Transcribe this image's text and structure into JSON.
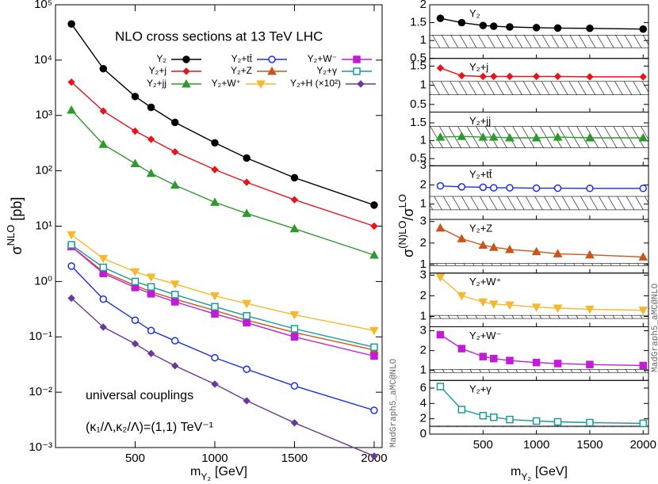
{
  "chart_data": [
    {
      "type": "line",
      "log_y": true,
      "grid": false,
      "title": "NLO cross sections at 13 TeV LHC",
      "annotations": [
        "universal couplings",
        "(κ₁/Λ,κ₂/Λ)=(1,1) TeV⁻¹"
      ],
      "watermark": "MadGraph5_aMC@NLO",
      "xlabel": {
        "main": "m",
        "sub": "Y₂",
        "unit": "[GeV]"
      },
      "ylabel": {
        "main": "σ",
        "sup": "NLO",
        "unit": "[pb]"
      },
      "x": [
        100,
        300,
        500,
        600,
        750,
        1000,
        1200,
        1500,
        2000
      ],
      "xlim": [
        0,
        2050
      ],
      "xticks": [
        500,
        1000,
        1500,
        2000
      ],
      "ylim": [
        0.001,
        100000
      ],
      "yticks": [
        {
          "value": 0.001,
          "label": "10⁻³"
        },
        {
          "value": 0.01,
          "label": "10⁻²"
        },
        {
          "value": 0.1,
          "label": "10⁻¹"
        },
        {
          "value": 1,
          "label": "10⁰"
        },
        {
          "value": 10,
          "label": "10¹"
        },
        {
          "value": 100,
          "label": "10²"
        },
        {
          "value": 1000,
          "label": "10³"
        },
        {
          "value": 10000,
          "label": "10⁴"
        },
        {
          "value": 100000,
          "label": "10⁵"
        }
      ],
      "series": [
        {
          "name": "Y₂",
          "color": "#000000",
          "marker": "circle",
          "values": [
            45000,
            7000,
            2200,
            1400,
            750,
            320,
            170,
            75,
            24
          ]
        },
        {
          "name": "Y₂+j",
          "color": "#e8141a",
          "marker": "diamond",
          "values": [
            4000,
            1200,
            520,
            370,
            220,
            105,
            62,
            30,
            10
          ]
        },
        {
          "name": "Y₂+jj",
          "color": "#2e9a2e",
          "marker": "triangle",
          "values": [
            1250,
            300,
            135,
            90,
            55,
            27,
            17,
            9,
            3
          ]
        },
        {
          "name": "Y₂+tt̄",
          "color": "#1a2fe0",
          "marker": "circle-open",
          "values": [
            1.9,
            0.48,
            0.2,
            0.13,
            0.085,
            0.042,
            0.026,
            0.013,
            0.0047
          ]
        },
        {
          "name": "Y₂+Z",
          "color": "#c8561c",
          "marker": "triangle",
          "values": [
            4.3,
            1.5,
            0.85,
            0.65,
            0.48,
            0.3,
            0.2,
            0.12,
            0.058
          ]
        },
        {
          "name": "Y₂+W⁺",
          "color": "#f5b82e",
          "marker": "triangle-down",
          "values": [
            7,
            2.6,
            1.5,
            1.2,
            0.9,
            0.55,
            0.4,
            0.25,
            0.13
          ]
        },
        {
          "name": "Y₂+W⁻",
          "color": "#c21bd6",
          "marker": "square",
          "values": [
            4.3,
            1.4,
            0.78,
            0.6,
            0.43,
            0.26,
            0.18,
            0.1,
            0.045
          ]
        },
        {
          "name": "Y₂+γ",
          "color": "#1a9a9a",
          "marker": "square-open",
          "values": [
            4.6,
            1.8,
            1.0,
            0.8,
            0.58,
            0.35,
            0.24,
            0.14,
            0.065
          ]
        },
        {
          "name": "Y₂+H (×10²)",
          "color": "#6a3a9a",
          "marker": "diamond",
          "values": [
            0.5,
            0.15,
            0.075,
            0.05,
            0.03,
            0.014,
            0.007,
            0.0028,
            0.0007
          ]
        }
      ]
    },
    {
      "type": "ratio-panels",
      "watermark": "MadGraph5_aMC@NLO",
      "xlabel": {
        "main": "m",
        "sub": "Y₂",
        "unit": "[GeV]"
      },
      "ylabel": {
        "a": "σ",
        "b": "(N)LO",
        "c": "/σ",
        "d": "LO"
      },
      "x": [
        100,
        300,
        500,
        600,
        750,
        1000,
        1200,
        1500,
        2000
      ],
      "xlim": [
        0,
        2050
      ],
      "xticks": [
        500,
        1000,
        1500,
        2000
      ],
      "panels": [
        {
          "name": "Y₂",
          "color": "#000000",
          "marker": "circle",
          "ylim": [
            0.5,
            2
          ],
          "yticks": [
            0.5,
            1,
            1.5,
            2
          ],
          "band": [
            0.8,
            1.15
          ],
          "values": [
            1.62,
            1.5,
            1.42,
            1.4,
            1.38,
            1.36,
            1.35,
            1.34,
            1.32
          ]
        },
        {
          "name": "Y₂+j",
          "color": "#e8141a",
          "marker": "diamond",
          "ylim": [
            0.3,
            1.7
          ],
          "yticks": [
            0.5,
            1,
            1.5
          ],
          "band": [
            0.75,
            1.1
          ],
          "values": [
            1.45,
            1.25,
            1.23,
            1.23,
            1.23,
            1.23,
            1.23,
            1.22,
            1.22
          ]
        },
        {
          "name": "Y₂+jj",
          "color": "#2e9a2e",
          "marker": "triangle",
          "ylim": [
            0.3,
            1.8
          ],
          "yticks": [
            0.5,
            1,
            1.5
          ],
          "band": [
            0.8,
            1.4
          ],
          "values": [
            1.1,
            1.12,
            1.1,
            1.1,
            1.08,
            1.08,
            1.1,
            1.08,
            1.08
          ]
        },
        {
          "name": "Y₂+tt̄",
          "color": "#1a2fe0",
          "marker": "circle-open",
          "ylim": [
            0.2,
            3
          ],
          "yticks": [
            1,
            2,
            3
          ],
          "band": [
            0.7,
            1.4
          ],
          "values": [
            1.95,
            1.9,
            1.88,
            1.85,
            1.85,
            1.83,
            1.83,
            1.82,
            1.82
          ]
        },
        {
          "name": "Y₂+Z",
          "color": "#c8561c",
          "marker": "triangle",
          "ylim": [
            0.6,
            3.1
          ],
          "yticks": [
            1,
            2,
            3
          ],
          "band": [
            0.95,
            1.05
          ],
          "values": [
            2.7,
            2.2,
            1.9,
            1.8,
            1.7,
            1.6,
            1.5,
            1.45,
            1.35
          ]
        },
        {
          "name": "Y₂+W⁺",
          "color": "#f5b82e",
          "marker": "triangle-down",
          "ylim": [
            0.5,
            3.1
          ],
          "yticks": [
            1,
            2,
            3
          ],
          "band": [
            0.9,
            1.05
          ],
          "values": [
            2.9,
            2.0,
            1.7,
            1.6,
            1.55,
            1.45,
            1.4,
            1.35,
            1.3
          ]
        },
        {
          "name": "Y₂+W⁻",
          "color": "#c21bd6",
          "marker": "square",
          "ylim": [
            0.5,
            3.2
          ],
          "yticks": [
            1,
            2,
            3
          ],
          "band": [
            0.9,
            1.05
          ],
          "values": [
            2.8,
            2.1,
            1.7,
            1.6,
            1.5,
            1.4,
            1.35,
            1.3,
            1.25
          ]
        },
        {
          "name": "Y₂+γ",
          "color": "#1a9a9a",
          "marker": "square-open",
          "ylim": [
            0,
            7
          ],
          "yticks": [
            0,
            2,
            4,
            6
          ],
          "band": [
            0.95,
            1.05
          ],
          "values": [
            6.2,
            3.2,
            2.4,
            2.2,
            1.9,
            1.7,
            1.6,
            1.5,
            1.4
          ]
        }
      ]
    }
  ]
}
